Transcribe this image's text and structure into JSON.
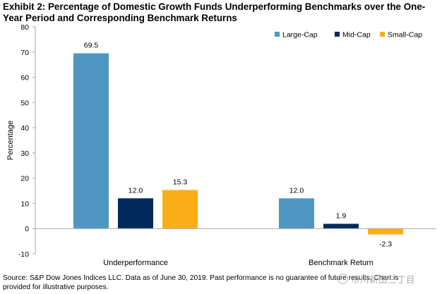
{
  "title_lines": [
    "Exhibit 2: Percentage of Domestic Growth Funds Underperforming Benchmarks over the One-",
    "Year Period and Corresponding Benchmark Returns"
  ],
  "footer_lines": [
    "Source: S&P Dow Jones Indices LLC. Data as of June 30, 2019. Past performance is no guarantee of future results. Chart is",
    "provided for illustrative purposes."
  ],
  "watermark_text": "市川新田三丁目",
  "colors": {
    "large_cap": "#4e97c2",
    "mid_cap": "#002a5c",
    "small_cap": "#fbad18",
    "axis": "#a6a6a6"
  },
  "chart_data": {
    "type": "bar",
    "categories": [
      "Underperformance",
      "Benchmark Return"
    ],
    "series": [
      {
        "name": "Large-Cap",
        "values": [
          69.5,
          12.0
        ],
        "labels": [
          "69.5",
          "12.0"
        ]
      },
      {
        "name": "Mid-Cap",
        "values": [
          12.0,
          1.9
        ],
        "labels": [
          "12.0",
          "1.9"
        ]
      },
      {
        "name": "Small-Cap",
        "values": [
          15.3,
          -2.3
        ],
        "labels": [
          "15.3",
          "-2.3"
        ]
      }
    ],
    "ylabel": "Percentage",
    "ylim": [
      -10,
      80
    ],
    "yticks": [
      -10,
      0,
      10,
      20,
      30,
      40,
      50,
      60,
      70,
      80
    ],
    "grid": false,
    "legend_position": "top-right"
  }
}
